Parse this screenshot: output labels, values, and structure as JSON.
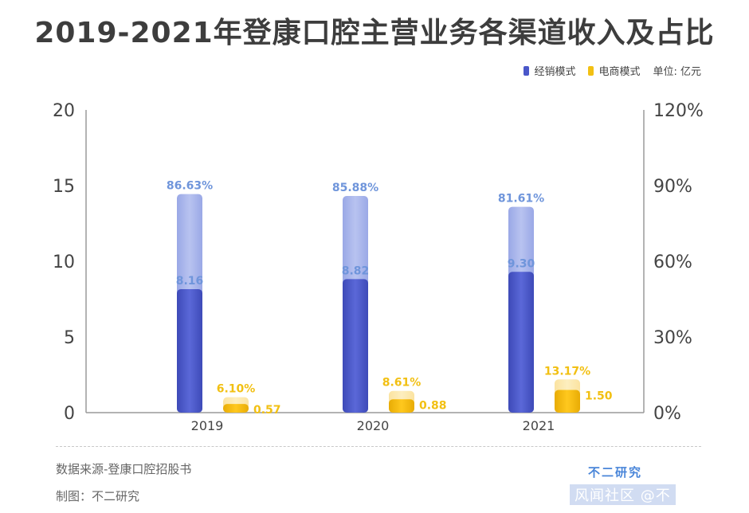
{
  "title": "2019-2021年登康口腔主营业务各渠道收入及占比",
  "legend": {
    "items": [
      {
        "label": "经销模式",
        "color": "#4a57c9"
      },
      {
        "label": "电商模式",
        "color": "#f2c013"
      }
    ],
    "unit": "单位: 亿元"
  },
  "source_text": "数据来源-登康口腔招股书",
  "credit_text": "制图：不二研究",
  "brand_text": "不二研究",
  "brand_sub_text": "风闻社区 @不",
  "chart_data": {
    "type": "bar",
    "categories": [
      "2019",
      "2020",
      "2021"
    ],
    "series": [
      {
        "name": "经销模式",
        "values": [
          8.16,
          8.82,
          9.3
        ],
        "share": [
          86.63,
          85.88,
          81.61
        ],
        "share_labels": [
          "86.63%",
          "85.88%",
          "81.61%"
        ],
        "color": "#4a57c9",
        "label_color": "#6f95db"
      },
      {
        "name": "电商模式",
        "values": [
          0.57,
          0.88,
          1.5
        ],
        "share": [
          6.1,
          8.61,
          13.17
        ],
        "share_labels": [
          "6.10%",
          "8.61%",
          "13.17%"
        ],
        "color": "#f2c013",
        "label_color": "#f2c013"
      }
    ],
    "value_labels": [
      [
        "8.16",
        "8.82",
        "9.30"
      ],
      [
        "0.57",
        "0.88",
        "1.50"
      ]
    ],
    "y_left": {
      "min": 0,
      "max": 20,
      "ticks": [
        0,
        5,
        10,
        15,
        20
      ],
      "tick_labels": [
        "0",
        "5",
        "10",
        "15",
        "20"
      ]
    },
    "y_right": {
      "min": 0,
      "max": 120,
      "ticks": [
        0,
        30,
        60,
        90,
        120
      ],
      "tick_labels": [
        "0%",
        "30%",
        "60%",
        "90%",
        "120%"
      ]
    },
    "xlabel": "",
    "ylabel": "亿元"
  }
}
